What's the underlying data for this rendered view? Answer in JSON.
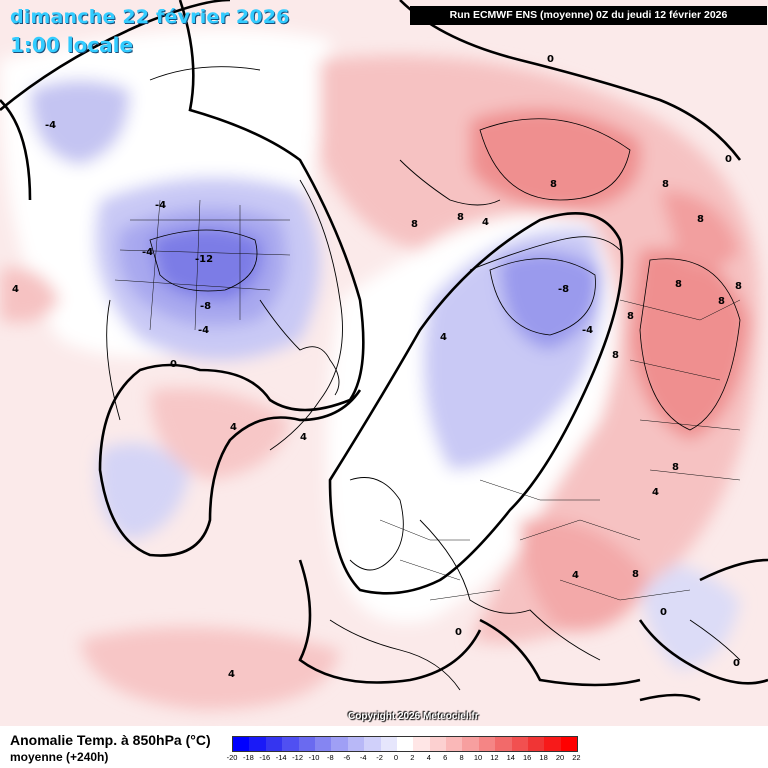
{
  "header": {
    "date_title": "dimanche 22 février 2026",
    "time_title": "1:00 locale",
    "run_info": "Run ECMWF ENS (moyenne) 0Z du jeudi 12 février 2026",
    "copyright": "Copyright 2026 Meteociel.fr"
  },
  "legend": {
    "title": "Anomalie Temp. à 850hPa (°C)",
    "subtitle": "moyenne   (+240h)",
    "ticks": [
      "-20",
      "-18",
      "-16",
      "-14",
      "-12",
      "-10",
      "-8",
      "-6",
      "-4",
      "-2",
      "0",
      "2",
      "4",
      "6",
      "8",
      "10",
      "12",
      "14",
      "16",
      "18",
      "20",
      "22"
    ],
    "colors": [
      "#0000ff",
      "#1a1af7",
      "#3535f0",
      "#5050f2",
      "#6a6af0",
      "#8585f2",
      "#9f9ff5",
      "#b8b8f7",
      "#d0d0fa",
      "#e6e6fc",
      "#ffffff",
      "#ffe6e6",
      "#fcd0d0",
      "#fab8b8",
      "#f79f9f",
      "#f58585",
      "#f26a6a",
      "#f25050",
      "#f03535",
      "#f71a1a",
      "#ff0000"
    ]
  },
  "map_labels": [
    {
      "text": "-4"
    },
    {
      "text": "-4"
    },
    {
      "text": "-12"
    },
    {
      "text": "-8"
    },
    {
      "text": "-4"
    },
    {
      "text": "-4"
    },
    {
      "text": "0"
    },
    {
      "text": "4"
    },
    {
      "text": "4"
    },
    {
      "text": "4"
    },
    {
      "text": "-8"
    },
    {
      "text": "-4"
    },
    {
      "text": "0"
    },
    {
      "text": "8"
    },
    {
      "text": "8"
    },
    {
      "text": "8"
    },
    {
      "text": "8"
    },
    {
      "text": "8"
    },
    {
      "text": "8"
    },
    {
      "text": "8"
    },
    {
      "text": "8"
    },
    {
      "text": "8"
    },
    {
      "text": "8"
    },
    {
      "text": "4"
    },
    {
      "text": "4"
    },
    {
      "text": "0"
    },
    {
      "text": "4"
    },
    {
      "text": "0"
    },
    {
      "text": "4"
    },
    {
      "text": "4"
    },
    {
      "text": "0"
    },
    {
      "text": "0"
    },
    {
      "text": "8"
    },
    {
      "text": "8"
    }
  ]
}
